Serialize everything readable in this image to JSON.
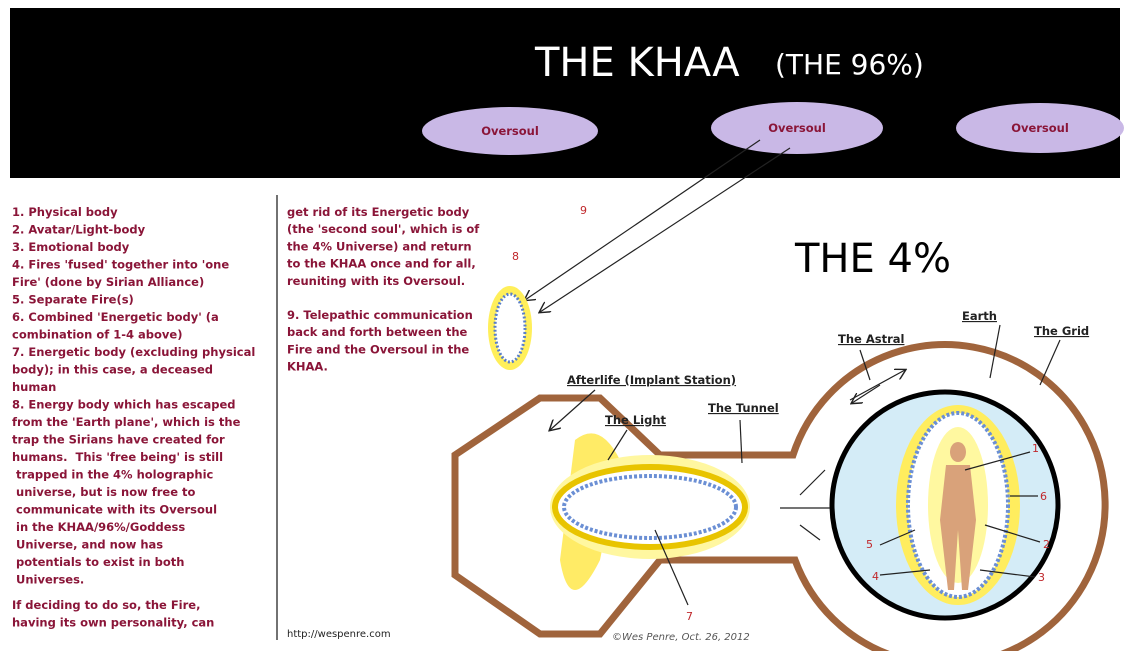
{
  "header": {
    "title": "THE KHAA",
    "subtitle": "(THE 96%)",
    "oversouls": [
      "Oversoul",
      "Oversoul",
      "Oversoul"
    ]
  },
  "left_text": [
    "1. Physical body",
    "2. Avatar/Light-body",
    "3. Emotional body",
    "4. Fires 'fused' together into 'one",
    "Fire' (done by Sirian Alliance)",
    "5. Separate Fire(s)",
    "6. Combined 'Energetic body' (a",
    "combination of 1-4 above)",
    "7. Energetic body (excluding physical",
    "body); in this case, a deceased",
    "human",
    "8. Energy body which has escaped",
    "from the 'Earth plane', which is the",
    "trap the Sirians have created for",
    "humans.  This 'free being' is still",
    " trapped in the 4% holographic",
    " universe, but is now free to",
    " communicate with its Oversoul",
    " in the KHAA/96%/Goddess",
    " Universe, and now has",
    " potentials to exist in both",
    " Universes."
  ],
  "left_text_end": [
    "If deciding to do so, the Fire,",
    "having its own personality, can"
  ],
  "middle_text": [
    "get rid of its Energetic body",
    "(the 'second soul', which is of",
    "the 4% Universe) and return",
    "to the KHAA once and for all,",
    "reuniting with its Oversoul."
  ],
  "middle_text_2": [
    "9. Telepathic communication",
    "back and forth between the",
    "Fire and the Oversoul in the",
    "KHAA."
  ],
  "diagram": {
    "title": "THE 4%",
    "earth": "Earth",
    "astral": "The Astral",
    "grid": "The Grid",
    "afterlife": "Afterlife (Implant Station)",
    "light": "The Light",
    "tunnel": "The Tunnel",
    "numbers": [
      "1",
      "2",
      "3",
      "4",
      "5",
      "6",
      "7",
      "8",
      "9"
    ]
  },
  "footer": {
    "url": "http://wespenre.com",
    "credit": "©Wes Penre, Oct. 26, 2012"
  }
}
